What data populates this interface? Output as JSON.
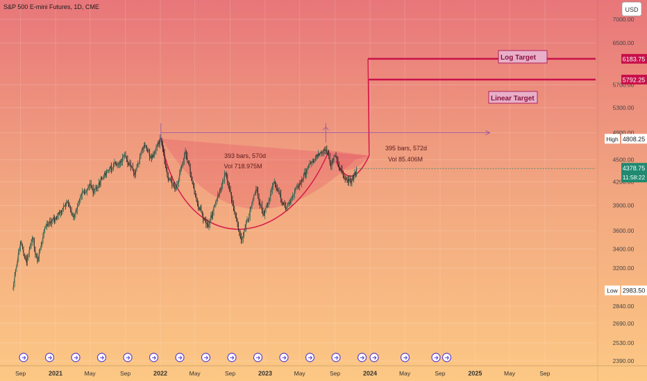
{
  "chart_data": {
    "type": "line",
    "title": "S&P 500 E-mini Futures, 1D, CME",
    "currency": "USD",
    "x_ticks": [
      "Sep",
      "2021",
      "May",
      "Sep",
      "2022",
      "May",
      "Sep",
      "2023",
      "May",
      "Sep",
      "2024",
      "May",
      "Sep",
      "2025",
      "May",
      "Sep"
    ],
    "x_tick_dates": [
      "2020-09-01",
      "2021-01-01",
      "2021-05-01",
      "2021-09-01",
      "2022-01-01",
      "2022-05-01",
      "2022-09-01",
      "2023-01-01",
      "2023-05-01",
      "2023-09-01",
      "2024-01-01",
      "2024-05-01",
      "2024-09-01",
      "2025-01-01",
      "2025-05-01",
      "2025-09-01"
    ],
    "y_ticks": [
      2390.0,
      2530.0,
      2690.0,
      2840.0,
      3200.0,
      3400.0,
      3600.0,
      3900.0,
      4200.0,
      4500.0,
      4900.0,
      5300.0,
      5700.0,
      6500.0,
      7000.0
    ],
    "y_tick_labels": [
      "2390.00",
      "2530.00",
      "2690.00",
      "2840.00",
      "3200.00",
      "3400.00",
      "3600.00",
      "3900.00",
      "4200.00",
      "4500.00",
      "4900.00",
      "5300.00",
      "5700.00",
      "6500.00",
      "7000.00"
    ],
    "log_scale": true,
    "ylim": [
      2350,
      7600
    ],
    "price_series": [
      {
        "x": "2020-08-05",
        "y": 2990
      },
      {
        "x": "2020-09-01",
        "y": 3480
      },
      {
        "x": "2020-09-22",
        "y": 3250
      },
      {
        "x": "2020-10-12",
        "y": 3520
      },
      {
        "x": "2020-10-30",
        "y": 3270
      },
      {
        "x": "2020-11-25",
        "y": 3630
      },
      {
        "x": "2021-01-01",
        "y": 3750
      },
      {
        "x": "2021-02-15",
        "y": 3930
      },
      {
        "x": "2021-03-05",
        "y": 3750
      },
      {
        "x": "2021-04-01",
        "y": 4020
      },
      {
        "x": "2021-05-01",
        "y": 4180
      },
      {
        "x": "2021-05-12",
        "y": 4050
      },
      {
        "x": "2021-07-01",
        "y": 4350
      },
      {
        "x": "2021-08-15",
        "y": 4480
      },
      {
        "x": "2021-09-02",
        "y": 4540
      },
      {
        "x": "2021-10-04",
        "y": 4290
      },
      {
        "x": "2021-11-05",
        "y": 4710
      },
      {
        "x": "2021-12-01",
        "y": 4520
      },
      {
        "x": "2022-01-03",
        "y": 4808.25
      },
      {
        "x": "2022-01-25",
        "y": 4280
      },
      {
        "x": "2022-02-24",
        "y": 4110
      },
      {
        "x": "2022-03-29",
        "y": 4630
      },
      {
        "x": "2022-05-10",
        "y": 3920
      },
      {
        "x": "2022-06-16",
        "y": 3640
      },
      {
        "x": "2022-08-16",
        "y": 4320
      },
      {
        "x": "2022-09-30",
        "y": 3600
      },
      {
        "x": "2022-10-13",
        "y": 3500
      },
      {
        "x": "2022-11-30",
        "y": 4100
      },
      {
        "x": "2022-12-28",
        "y": 3780
      },
      {
        "x": "2023-02-02",
        "y": 4200
      },
      {
        "x": "2023-03-13",
        "y": 3850
      },
      {
        "x": "2023-05-01",
        "y": 4180
      },
      {
        "x": "2023-06-15",
        "y": 4480
      },
      {
        "x": "2023-07-31",
        "y": 4650
      },
      {
        "x": "2023-08-18",
        "y": 4400
      },
      {
        "x": "2023-09-01",
        "y": 4560
      },
      {
        "x": "2023-09-26",
        "y": 4320
      },
      {
        "x": "2023-10-27",
        "y": 4170
      },
      {
        "x": "2023-11-15",
        "y": 4378.75
      }
    ],
    "annotations": {
      "log_target": {
        "label": "Log Target",
        "value": 6183.75,
        "value_label": "6183.75",
        "x_start": "2023-12-25",
        "x_end": "2025-12-31"
      },
      "linear_target": {
        "label": "Linear Target",
        "value": 5792.25,
        "value_label": "5792.25",
        "x_start": "2023-12-27",
        "x_end": "2025-12-31"
      },
      "high": {
        "label": "High",
        "value": 4808.25,
        "value_label": "4808.25"
      },
      "low": {
        "label": "Low",
        "value": 2983.5,
        "value_label": "2983.50"
      },
      "current_price": {
        "value": 4378.75,
        "value_label": "4378.75",
        "countdown": "11:58:22"
      },
      "range1": {
        "text1": "393 bars, 570d",
        "text2": "Vol 718.975M"
      },
      "range2": {
        "text1": "395 bars, 572d",
        "text2": "Vol 85.406M"
      },
      "measure_level": 4900,
      "measure_start": "2022-01-03",
      "measure_mid": "2023-07-31",
      "measure_end": "2025-02-21",
      "event_marker_count": 18
    }
  }
}
